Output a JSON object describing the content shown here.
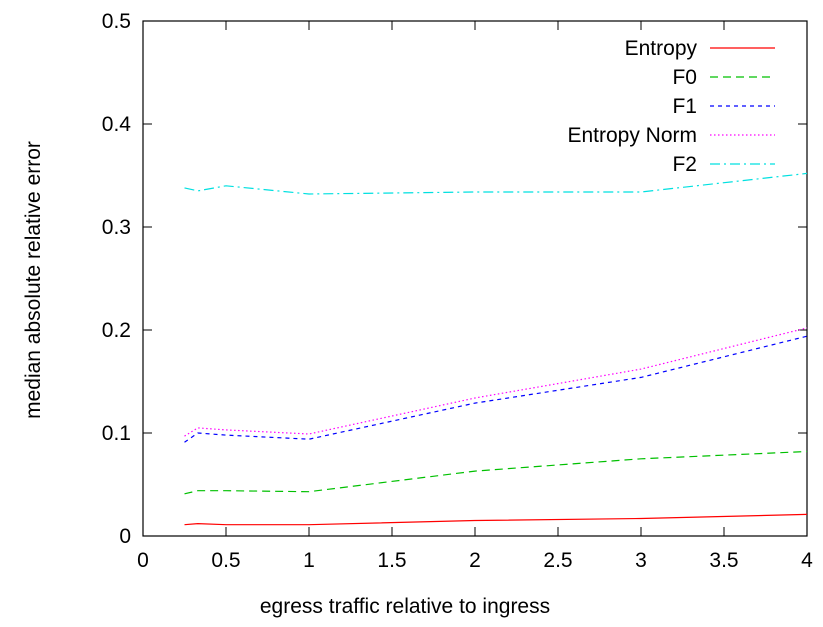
{
  "chart_data": {
    "type": "line",
    "title": "",
    "xlabel": "egress traffic relative to ingress",
    "ylabel": "median absolute relative error",
    "xlim": [
      0,
      4
    ],
    "ylim": [
      0,
      0.5
    ],
    "xticks": [
      "0",
      "0.5",
      "1",
      "1.5",
      "2",
      "2.5",
      "3",
      "3.5",
      "4"
    ],
    "yticks": [
      "0",
      "0.1",
      "0.2",
      "0.3",
      "0.4",
      "0.5"
    ],
    "grid": false,
    "legend_position": "top-right",
    "series": [
      {
        "name": "Entropy",
        "color": "#ff0000",
        "dash": "solid",
        "x": [
          0.25,
          0.33,
          0.5,
          1,
          2,
          3,
          4
        ],
        "y": [
          0.011,
          0.012,
          0.011,
          0.011,
          0.015,
          0.017,
          0.021
        ]
      },
      {
        "name": "F0",
        "color": "#00c000",
        "dash": "dashed",
        "x": [
          0.25,
          0.33,
          0.5,
          1,
          2,
          3,
          4
        ],
        "y": [
          0.041,
          0.044,
          0.044,
          0.043,
          0.063,
          0.075,
          0.082
        ]
      },
      {
        "name": "F1",
        "color": "#0000ff",
        "dash": "short-dash",
        "x": [
          0.25,
          0.33,
          0.5,
          1,
          2,
          3,
          4
        ],
        "y": [
          0.091,
          0.1,
          0.098,
          0.094,
          0.129,
          0.154,
          0.194
        ]
      },
      {
        "name": "Entropy Norm",
        "color": "#ff00ff",
        "dash": "dotted",
        "x": [
          0.25,
          0.33,
          0.5,
          1,
          2,
          3,
          4
        ],
        "y": [
          0.097,
          0.105,
          0.103,
          0.099,
          0.134,
          0.162,
          0.202
        ]
      },
      {
        "name": "F2",
        "color": "#00e0e0",
        "dash": "dash-dot",
        "x": [
          0.25,
          0.33,
          0.5,
          1,
          2,
          3,
          4
        ],
        "y": [
          0.338,
          0.335,
          0.34,
          0.332,
          0.334,
          0.334,
          0.352
        ]
      }
    ]
  }
}
